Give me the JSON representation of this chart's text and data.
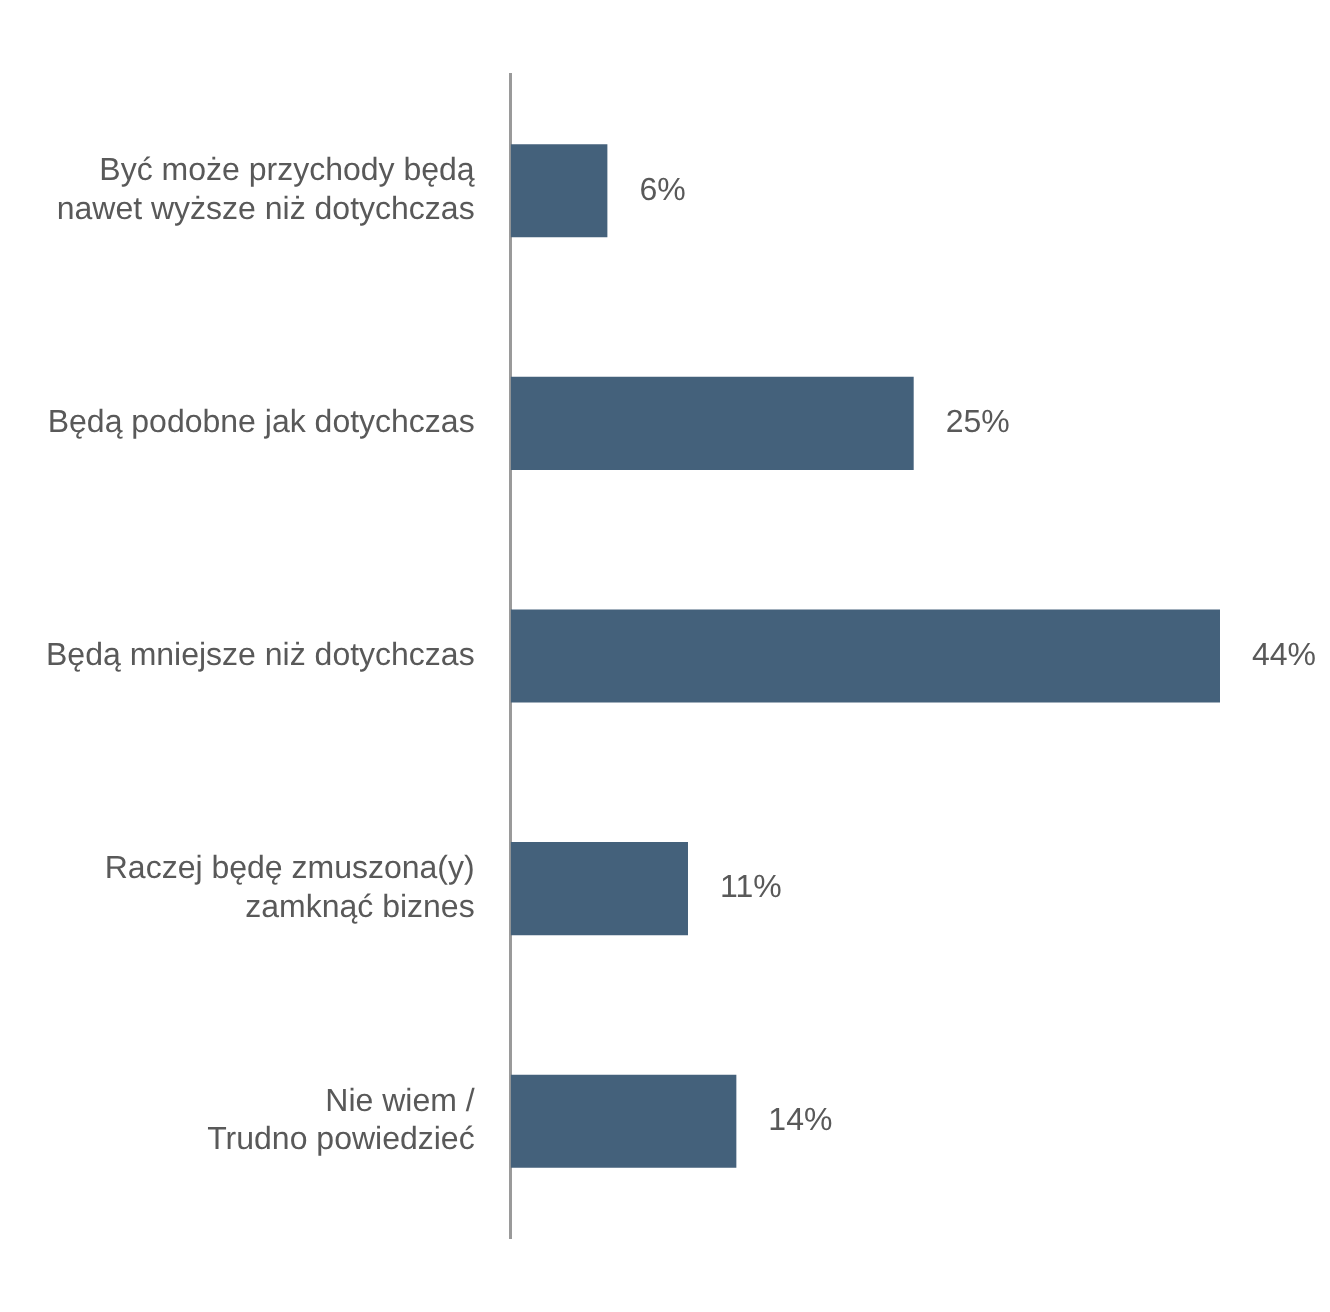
{
  "chart_data": {
    "type": "bar",
    "orientation": "horizontal",
    "categories": [
      "Być może przychody będą\nnawet wyższe niż dotychczas",
      "Będą podobne jak dotychczas",
      "Będą mniejsze niż dotychczas",
      "Raczej będę zmuszona(y)\nzamknąć biznes",
      "Nie wiem /\nTrudno powiedzieć"
    ],
    "values": [
      6,
      25,
      44,
      11,
      14
    ],
    "value_labels": [
      "6%",
      "25%",
      "44%",
      "11%",
      "14%"
    ],
    "color": "#44617b",
    "xlim": [
      0,
      44
    ],
    "legend": false
  }
}
